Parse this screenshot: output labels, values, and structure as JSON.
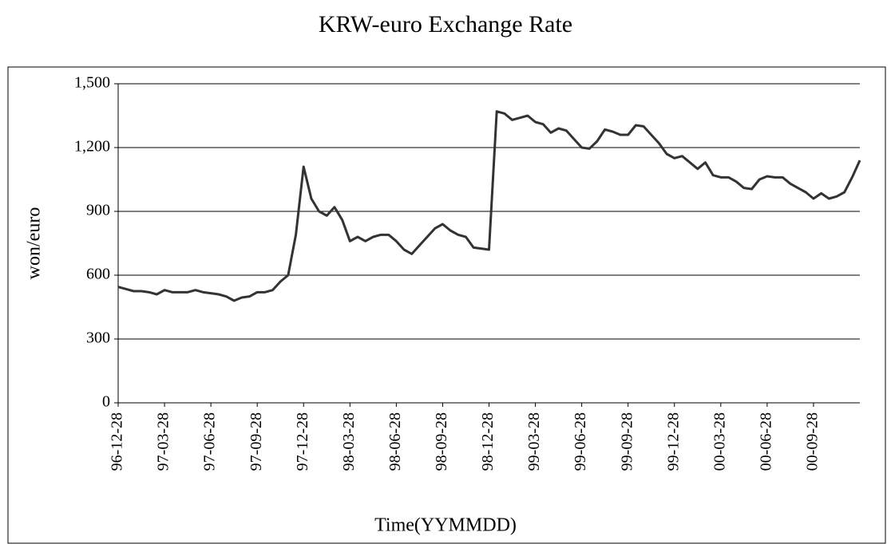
{
  "chart_data": {
    "type": "line",
    "title": "KRW-euro Exchange Rate",
    "x_label": "Time(YYMMDD)",
    "y_label": "won/euro",
    "categories": [
      "96-12-28",
      null,
      null,
      null,
      null,
      null,
      "97-03-28",
      null,
      null,
      null,
      null,
      null,
      "97-06-28",
      null,
      null,
      null,
      null,
      null,
      "97-09-28",
      null,
      null,
      null,
      null,
      null,
      "97-12-28",
      null,
      null,
      null,
      null,
      null,
      "98-03-28",
      null,
      null,
      null,
      null,
      null,
      "98-06-28",
      null,
      null,
      null,
      null,
      null,
      "98-09-28",
      null,
      null,
      null,
      null,
      null,
      "98-12-28",
      null,
      null,
      null,
      null,
      null,
      "99-03-28",
      null,
      null,
      null,
      null,
      null,
      "99-06-28",
      null,
      null,
      null,
      null,
      null,
      "99-09-28",
      null,
      null,
      null,
      null,
      null,
      "99-12-28",
      null,
      null,
      null,
      null,
      null,
      "00-03-28",
      null,
      null,
      null,
      null,
      null,
      "00-06-28",
      null,
      null,
      null,
      null,
      null,
      "00-09-28",
      null,
      null,
      null,
      null,
      null,
      null
    ],
    "series": [
      {
        "name": "KRW-euro",
        "color": "#333333",
        "values": [
          545,
          535,
          525,
          525,
          520,
          510,
          530,
          520,
          520,
          520,
          530,
          520,
          515,
          510,
          500,
          480,
          495,
          500,
          520,
          520,
          530,
          570,
          600,
          790,
          1110,
          960,
          900,
          880,
          920,
          860,
          760,
          780,
          760,
          780,
          790,
          790,
          760,
          720,
          700,
          740,
          780,
          820,
          840,
          810,
          790,
          780,
          730,
          725,
          720,
          1370,
          1360,
          1330,
          1340,
          1350,
          1320,
          1310,
          1270,
          1290,
          1280,
          1240,
          1200,
          1195,
          1230,
          1285,
          1275,
          1260,
          1260,
          1305,
          1300,
          1260,
          1220,
          1170,
          1150,
          1160,
          1130,
          1100,
          1130,
          1070,
          1060,
          1060,
          1040,
          1010,
          1005,
          1050,
          1065,
          1060,
          1060,
          1030,
          1010,
          990,
          960,
          985,
          960,
          970,
          990,
          1060,
          1140
        ]
      }
    ],
    "ylim": [
      0,
      1500
    ],
    "yticks": [
      0,
      300,
      600,
      900,
      {
        "value": 1200,
        "label": "1,200"
      },
      {
        "value": 1500,
        "label": "1,500"
      }
    ],
    "grid": true
  }
}
